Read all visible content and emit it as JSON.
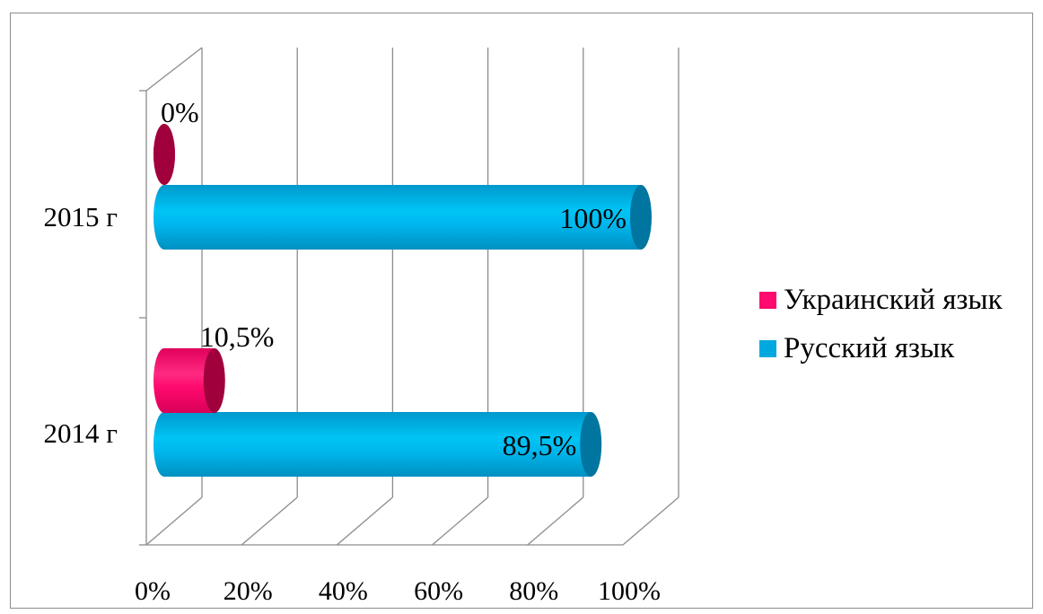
{
  "chart_data": {
    "type": "bar",
    "orientation": "horizontal",
    "style": "3d-cylinder",
    "categories": [
      "2014 г",
      "2015 г"
    ],
    "series": [
      {
        "name": "Русский язык",
        "values": [
          89.5,
          100
        ],
        "labels": [
          "89,5%",
          "100%"
        ],
        "color": "#00a8e0",
        "dark_color": "#0075a0"
      },
      {
        "name": "Украинский язык",
        "values": [
          10.5,
          0
        ],
        "labels": [
          "10,5%",
          "0%"
        ],
        "color": "#ff0a6e",
        "dark_color": "#a0003c"
      }
    ],
    "x_ticks": [
      "0%",
      "20%",
      "40%",
      "60%",
      "80%",
      "100%"
    ],
    "xlim": [
      0,
      100
    ],
    "grid": true,
    "legend": {
      "position": "right",
      "items": [
        {
          "label": "Украинский язык",
          "color": "#ff0a6e"
        },
        {
          "label": "Русский язык",
          "color": "#00a8e0"
        }
      ]
    }
  }
}
